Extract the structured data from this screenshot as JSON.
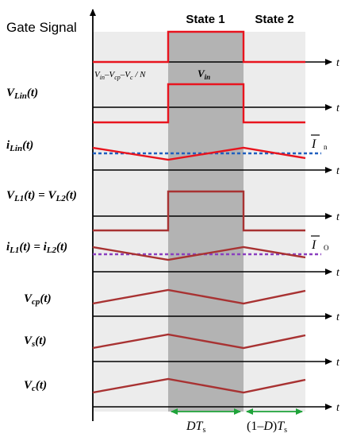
{
  "header": {
    "gate_signal": "Gate Signal",
    "state1": "State 1",
    "state2": "State 2"
  },
  "annotations": {
    "state2_voltage": "Vin–Vcp–Vc / N",
    "state1_voltage": "Vin",
    "avg_input_current": "I n",
    "avg_output_current": "I O"
  },
  "waveforms": [
    {
      "label": "VLin(t)"
    },
    {
      "label": "iLin(t)"
    },
    {
      "label": "VL1(t) = VL2(t)"
    },
    {
      "label": "iL1(t) = iL2(t)"
    },
    {
      "label": "Vcp(t)"
    },
    {
      "label": "Vs(t)"
    },
    {
      "label": "Vc(t)"
    }
  ],
  "axis_symbol": "t",
  "durations": {
    "on_time": "DTs",
    "off_time": "(1–D)Ts"
  },
  "colors": {
    "signal": "#e8141e",
    "ramp": "#a83232",
    "average": "#1f5fbf",
    "average_out": "#8a3fbf",
    "state1_band": "#b3b3b3",
    "state2_band": "#ececec",
    "duration_arrow": "#1fa33a"
  }
}
